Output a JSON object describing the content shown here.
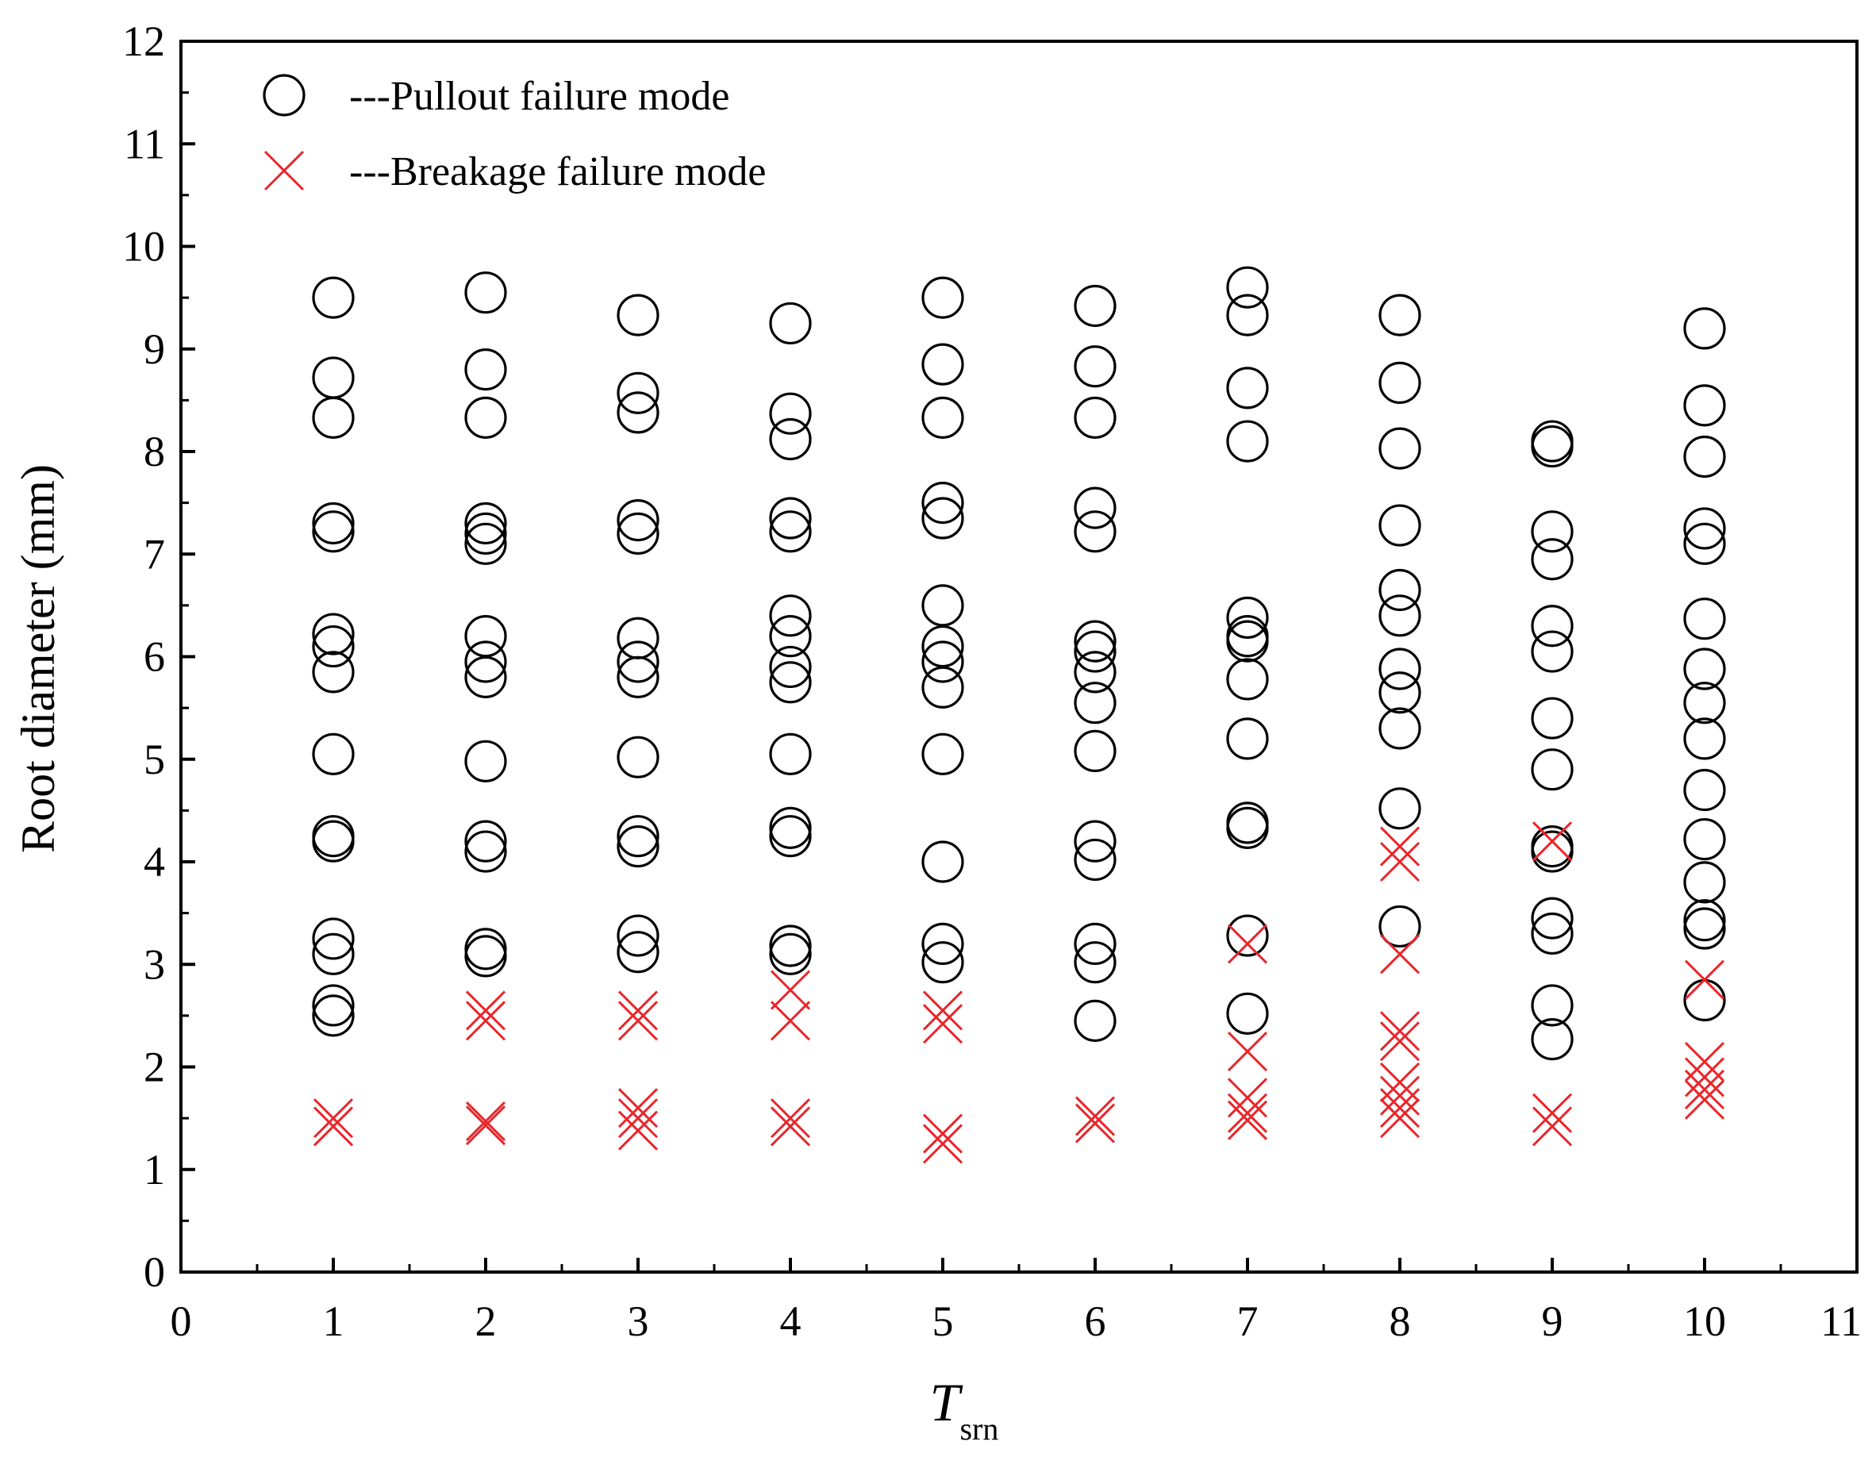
{
  "chart_data": {
    "type": "scatter",
    "title": "",
    "xlabel": "T",
    "xlabel_subscript": "srn",
    "ylabel": "Root diameter (mm)",
    "xlim": [
      0,
      11
    ],
    "ylim": [
      0,
      12
    ],
    "x_ticks": [
      "0",
      "1",
      "2",
      "3",
      "4",
      "5",
      "6",
      "7",
      "8",
      "9",
      "10",
      "11"
    ],
    "y_ticks": [
      "0",
      "1",
      "2",
      "3",
      "4",
      "5",
      "6",
      "7",
      "8",
      "9",
      "10",
      "11",
      "12"
    ],
    "grid": false,
    "legend_position": "top-left",
    "series": [
      {
        "name": "---Pullout failure mode",
        "marker": "circle",
        "color": "#000000",
        "points": [
          [
            1,
            9.5
          ],
          [
            1,
            8.72
          ],
          [
            1,
            8.33
          ],
          [
            1,
            7.3
          ],
          [
            1,
            7.22
          ],
          [
            1,
            6.22
          ],
          [
            1,
            6.1
          ],
          [
            1,
            5.85
          ],
          [
            1,
            5.05
          ],
          [
            1,
            4.25
          ],
          [
            1,
            4.2
          ],
          [
            1,
            3.25
          ],
          [
            1,
            3.1
          ],
          [
            1,
            2.6
          ],
          [
            1,
            2.5
          ],
          [
            2,
            9.55
          ],
          [
            2,
            8.8
          ],
          [
            2,
            8.33
          ],
          [
            2,
            7.3
          ],
          [
            2,
            7.2
          ],
          [
            2,
            7.1
          ],
          [
            2,
            6.2
          ],
          [
            2,
            5.95
          ],
          [
            2,
            5.8
          ],
          [
            2,
            4.98
          ],
          [
            2,
            4.2
          ],
          [
            2,
            4.1
          ],
          [
            2,
            3.15
          ],
          [
            2,
            3.08
          ],
          [
            3,
            9.33
          ],
          [
            3,
            8.57
          ],
          [
            3,
            8.38
          ],
          [
            3,
            7.33
          ],
          [
            3,
            7.2
          ],
          [
            3,
            6.18
          ],
          [
            3,
            5.95
          ],
          [
            3,
            5.8
          ],
          [
            3,
            5.02
          ],
          [
            3,
            4.25
          ],
          [
            3,
            4.15
          ],
          [
            3,
            3.28
          ],
          [
            3,
            3.12
          ],
          [
            4,
            9.25
          ],
          [
            4,
            8.37
          ],
          [
            4,
            8.12
          ],
          [
            4,
            7.35
          ],
          [
            4,
            7.22
          ],
          [
            4,
            6.4
          ],
          [
            4,
            6.2
          ],
          [
            4,
            5.9
          ],
          [
            4,
            5.75
          ],
          [
            4,
            5.05
          ],
          [
            4,
            4.33
          ],
          [
            4,
            4.25
          ],
          [
            4,
            3.18
          ],
          [
            4,
            3.1
          ],
          [
            5,
            9.5
          ],
          [
            5,
            8.85
          ],
          [
            5,
            8.33
          ],
          [
            5,
            7.5
          ],
          [
            5,
            7.35
          ],
          [
            5,
            6.5
          ],
          [
            5,
            6.1
          ],
          [
            5,
            5.95
          ],
          [
            5,
            5.7
          ],
          [
            5,
            5.05
          ],
          [
            5,
            4.0
          ],
          [
            5,
            3.2
          ],
          [
            5,
            3.02
          ],
          [
            6,
            9.42
          ],
          [
            6,
            8.83
          ],
          [
            6,
            8.33
          ],
          [
            6,
            7.45
          ],
          [
            6,
            7.22
          ],
          [
            6,
            6.15
          ],
          [
            6,
            6.05
          ],
          [
            6,
            5.85
          ],
          [
            6,
            5.55
          ],
          [
            6,
            5.08
          ],
          [
            6,
            4.2
          ],
          [
            6,
            4.02
          ],
          [
            6,
            3.2
          ],
          [
            6,
            3.02
          ],
          [
            6,
            2.45
          ],
          [
            7,
            9.6
          ],
          [
            7,
            9.33
          ],
          [
            7,
            8.62
          ],
          [
            7,
            8.1
          ],
          [
            7,
            6.38
          ],
          [
            7,
            6.2
          ],
          [
            7,
            6.15
          ],
          [
            7,
            5.78
          ],
          [
            7,
            5.2
          ],
          [
            7,
            4.38
          ],
          [
            7,
            4.33
          ],
          [
            7,
            3.28
          ],
          [
            7,
            2.52
          ],
          [
            8,
            9.33
          ],
          [
            8,
            8.67
          ],
          [
            8,
            8.03
          ],
          [
            8,
            7.28
          ],
          [
            8,
            6.65
          ],
          [
            8,
            6.4
          ],
          [
            8,
            5.88
          ],
          [
            8,
            5.65
          ],
          [
            8,
            5.3
          ],
          [
            8,
            4.52
          ],
          [
            8,
            3.37
          ],
          [
            9,
            8.1
          ],
          [
            9,
            8.05
          ],
          [
            9,
            7.22
          ],
          [
            9,
            6.95
          ],
          [
            9,
            6.3
          ],
          [
            9,
            6.05
          ],
          [
            9,
            5.4
          ],
          [
            9,
            4.9
          ],
          [
            9,
            4.15
          ],
          [
            9,
            4.1
          ],
          [
            9,
            3.45
          ],
          [
            9,
            3.3
          ],
          [
            9,
            2.6
          ],
          [
            9,
            2.27
          ],
          [
            10,
            9.2
          ],
          [
            10,
            8.45
          ],
          [
            10,
            7.95
          ],
          [
            10,
            7.25
          ],
          [
            10,
            7.1
          ],
          [
            10,
            6.37
          ],
          [
            10,
            5.88
          ],
          [
            10,
            5.55
          ],
          [
            10,
            5.2
          ],
          [
            10,
            4.7
          ],
          [
            10,
            4.22
          ],
          [
            10,
            3.8
          ],
          [
            10,
            3.43
          ],
          [
            10,
            3.35
          ],
          [
            10,
            2.65
          ]
        ]
      },
      {
        "name": "---Breakage failure mode",
        "marker": "x",
        "color": "#e8262b",
        "points": [
          [
            1,
            1.5
          ],
          [
            1,
            1.42
          ],
          [
            2,
            2.55
          ],
          [
            2,
            2.45
          ],
          [
            2,
            1.47
          ],
          [
            2,
            1.43
          ],
          [
            3,
            2.55
          ],
          [
            3,
            2.45
          ],
          [
            3,
            1.6
          ],
          [
            3,
            1.5
          ],
          [
            3,
            1.38
          ],
          [
            4,
            2.75
          ],
          [
            4,
            2.45
          ],
          [
            4,
            1.5
          ],
          [
            4,
            1.42
          ],
          [
            5,
            2.55
          ],
          [
            5,
            2.42
          ],
          [
            5,
            1.35
          ],
          [
            5,
            1.25
          ],
          [
            6,
            1.52
          ],
          [
            6,
            1.45
          ],
          [
            7,
            3.2
          ],
          [
            7,
            2.15
          ],
          [
            7,
            1.7
          ],
          [
            7,
            1.55
          ],
          [
            7,
            1.48
          ],
          [
            8,
            4.15
          ],
          [
            8,
            4.0
          ],
          [
            8,
            3.1
          ],
          [
            8,
            2.35
          ],
          [
            8,
            2.25
          ],
          [
            8,
            1.85
          ],
          [
            8,
            1.72
          ],
          [
            8,
            1.6
          ],
          [
            8,
            1.5
          ],
          [
            9,
            4.2
          ],
          [
            9,
            1.55
          ],
          [
            9,
            1.42
          ],
          [
            10,
            2.85
          ],
          [
            10,
            2.05
          ],
          [
            10,
            1.9
          ],
          [
            10,
            1.78
          ],
          [
            10,
            1.68
          ]
        ]
      }
    ]
  }
}
